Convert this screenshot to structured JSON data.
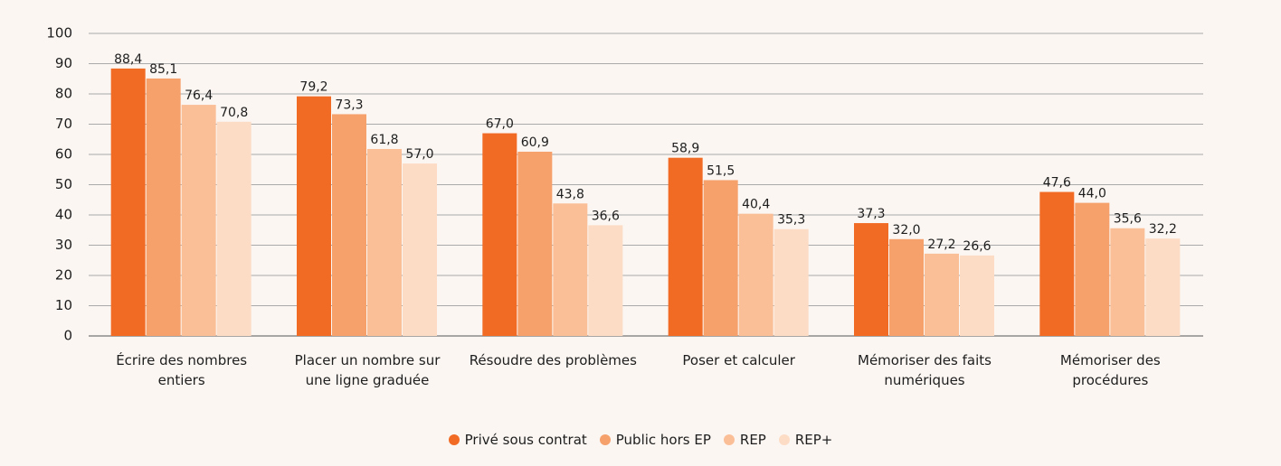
{
  "chart_data": {
    "type": "bar",
    "categories": [
      "Écrire des nombres entiers",
      "Placer un nombre sur une ligne graduée",
      "Résoudre des problèmes",
      "Poser et calculer",
      "Mémoriser des faits numériques",
      "Mémoriser des procédures"
    ],
    "series": [
      {
        "name": "Privé sous contrat",
        "color": "#f26b24",
        "values": [
          88.4,
          79.2,
          67.0,
          58.9,
          37.3,
          47.6
        ],
        "value_labels": [
          "88,4",
          "79,2",
          "67,0",
          "58,9",
          "37,3",
          "47,6"
        ]
      },
      {
        "name": "Public hors EP",
        "color": "#f6a06c",
        "values": [
          85.1,
          73.3,
          60.9,
          51.5,
          32.0,
          44.0
        ],
        "value_labels": [
          "85,1",
          "73,3",
          "60,9",
          "51,5",
          "32,0",
          "44,0"
        ]
      },
      {
        "name": "REP",
        "color": "#fbbf98",
        "values": [
          76.4,
          61.8,
          43.8,
          40.4,
          27.2,
          35.6
        ],
        "value_labels": [
          "76,4",
          "61,8",
          "43,8",
          "40,4",
          "27,2",
          "35,6"
        ]
      },
      {
        "name": "REP+",
        "color": "#fddcc5",
        "values": [
          70.8,
          57.0,
          36.6,
          35.3,
          26.6,
          32.2
        ],
        "value_labels": [
          "70,8",
          "57,0",
          "36,6",
          "35,3",
          "26,6",
          "32,2"
        ]
      }
    ],
    "ylim": [
      0,
      100
    ],
    "yticks": [
      0,
      10,
      20,
      30,
      40,
      50,
      60,
      70,
      80,
      90,
      100
    ],
    "grid": true,
    "legend": "bottom"
  }
}
